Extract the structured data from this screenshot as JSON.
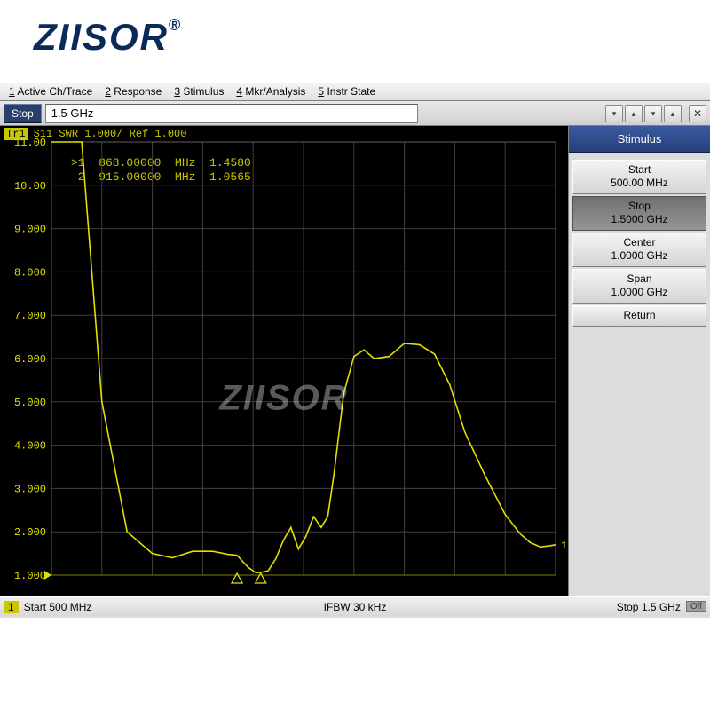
{
  "brand": "ZIISOR",
  "brand_reg": "®",
  "menu": {
    "items": [
      {
        "key": "1",
        "rest": " Active Ch/Trace"
      },
      {
        "key": "2",
        "rest": " Response"
      },
      {
        "key": "3",
        "rest": " Stimulus"
      },
      {
        "key": "4",
        "rest": " Mkr/Analysis"
      },
      {
        "key": "5",
        "rest": " Instr State"
      }
    ]
  },
  "input": {
    "label": "Stop",
    "value": "1.5 GHz"
  },
  "trace": {
    "tag": "Tr1",
    "text": "S11 SWR 1.000/ Ref 1.000",
    "color": "#d8d800"
  },
  "markers": [
    {
      "idx": ">1",
      "freq": "868.00000",
      "unit": "MHz",
      "val": "1.4580"
    },
    {
      "idx": " 2",
      "freq": "915.00000",
      "unit": "MHz",
      "val": "1.0565"
    }
  ],
  "chart": {
    "type": "line",
    "yticks": [
      "11.00",
      "10.00",
      "9.000",
      "8.000",
      "7.000",
      "6.000",
      "5.000",
      "4.000",
      "3.000",
      "2.000",
      "1.000"
    ],
    "ylim": [
      1.0,
      11.0
    ],
    "xlim_hz": [
      500000000,
      1500000000
    ],
    "trace_color": "#e0e000",
    "grid_color": "#404040",
    "bg_color": "#000000",
    "marker_end_label": "1",
    "marker_triangles_x_hz": [
      868000000,
      915000000
    ],
    "points": [
      [
        500,
        25.0
      ],
      [
        520,
        20.0
      ],
      [
        560,
        11.0
      ],
      [
        600,
        5.0
      ],
      [
        650,
        2.0
      ],
      [
        700,
        1.5
      ],
      [
        740,
        1.4
      ],
      [
        780,
        1.55
      ],
      [
        820,
        1.55
      ],
      [
        850,
        1.48
      ],
      [
        868,
        1.46
      ],
      [
        890,
        1.18
      ],
      [
        905,
        1.06
      ],
      [
        915,
        1.06
      ],
      [
        930,
        1.1
      ],
      [
        945,
        1.38
      ],
      [
        960,
        1.8
      ],
      [
        975,
        2.1
      ],
      [
        990,
        1.6
      ],
      [
        1005,
        1.9
      ],
      [
        1020,
        2.35
      ],
      [
        1035,
        2.1
      ],
      [
        1048,
        2.35
      ],
      [
        1060,
        3.3
      ],
      [
        1080,
        5.2
      ],
      [
        1100,
        6.05
      ],
      [
        1120,
        6.2
      ],
      [
        1140,
        6.0
      ],
      [
        1170,
        6.05
      ],
      [
        1200,
        6.35
      ],
      [
        1230,
        6.32
      ],
      [
        1260,
        6.1
      ],
      [
        1290,
        5.4
      ],
      [
        1320,
        4.3
      ],
      [
        1360,
        3.3
      ],
      [
        1400,
        2.4
      ],
      [
        1430,
        1.95
      ],
      [
        1450,
        1.75
      ],
      [
        1470,
        1.65
      ],
      [
        1490,
        1.68
      ],
      [
        1500,
        1.7
      ]
    ]
  },
  "watermark": "ZIISOR",
  "side": {
    "title": "Stimulus",
    "buttons": [
      {
        "label": "Start",
        "value": "500.00 MHz",
        "selected": false
      },
      {
        "label": "Stop",
        "value": "1.5000 GHz",
        "selected": true
      },
      {
        "label": "Center",
        "value": "1.0000 GHz",
        "selected": false
      },
      {
        "label": "Span",
        "value": "1.0000 GHz",
        "selected": false
      },
      {
        "label": "Return",
        "value": "",
        "selected": false
      }
    ]
  },
  "status": {
    "ch": "1",
    "left": "Start 500 MHz",
    "mid": "IFBW 30 kHz",
    "right": "Stop 1.5 GHz",
    "off": "Off"
  }
}
